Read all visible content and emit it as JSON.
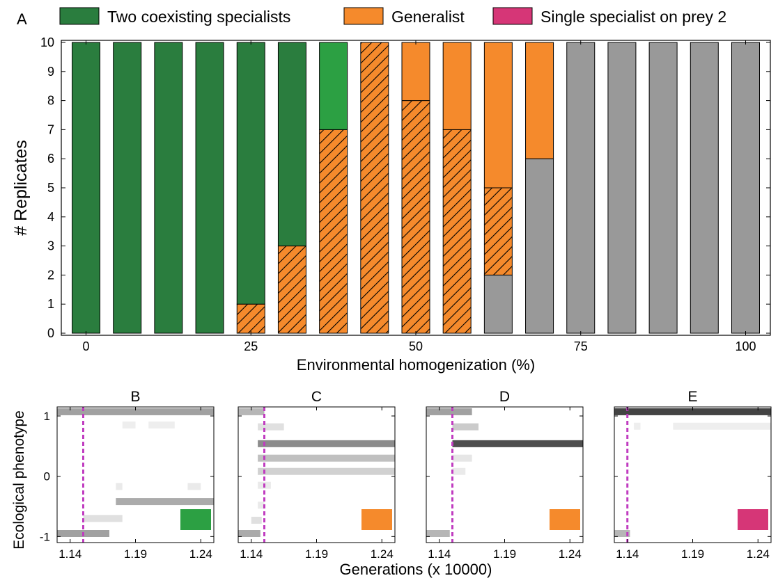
{
  "colors": {
    "specialists_dark": "#2a7d3e",
    "specialists_light": "#2ca043",
    "generalist": "#f58a2c",
    "single_specialist": "#d63677",
    "marker_line": "#c03cc0",
    "trace": "#555555"
  },
  "chart_data": [
    {
      "panel": "A",
      "type": "bar",
      "stacked": true,
      "legend": [
        "Two coexisting specialists",
        "Generalist",
        "Single specialist on prey 2"
      ],
      "legend_position": "top",
      "xlabel": "Environmental homogenization (%)",
      "ylabel": "# Replicates",
      "ylim": [
        0,
        10
      ],
      "yticks": [
        "0",
        "1",
        "2",
        "3",
        "4",
        "5",
        "6",
        "7",
        "8",
        "9",
        "10"
      ],
      "xlim": [
        -3.75,
        103.75
      ],
      "xticks": [
        "0",
        "25",
        "50",
        "75",
        "100"
      ],
      "x": [
        0,
        6.25,
        12.5,
        18.75,
        25,
        31.25,
        37.5,
        43.75,
        50,
        56.25,
        62.5,
        68.75,
        75,
        81.25,
        87.5,
        93.75,
        100
      ],
      "series": [
        {
          "name": "Single specialist on prey 2",
          "style": "single",
          "values": [
            0,
            0,
            0,
            0,
            0,
            0,
            0,
            0,
            0,
            0,
            2,
            6,
            10,
            10,
            10,
            10,
            10
          ]
        },
        {
          "name": "Generalist",
          "style": "hatched",
          "values": [
            0,
            0,
            0,
            0,
            1,
            3,
            7,
            10,
            8,
            7,
            3,
            0,
            0,
            0,
            0,
            0,
            0
          ]
        },
        {
          "name": "Generalist",
          "style": "generalist",
          "values": [
            0,
            0,
            0,
            0,
            0,
            0,
            0,
            0,
            2,
            3,
            5,
            4,
            0,
            0,
            0,
            0,
            0
          ]
        },
        {
          "name": "Two coexisting specialists",
          "style": "specialists_light",
          "values": [
            0,
            0,
            0,
            0,
            0,
            0,
            3,
            0,
            0,
            0,
            0,
            0,
            0,
            0,
            0,
            0,
            0
          ]
        },
        {
          "name": "Two coexisting specialists",
          "style": "specialists_dark",
          "values": [
            10,
            10,
            10,
            10,
            9,
            7,
            0,
            0,
            0,
            0,
            0,
            0,
            0,
            0,
            0,
            0,
            0
          ]
        }
      ],
      "grid": false
    },
    {
      "panel": "B",
      "type": "heatmap",
      "xlabel": "Generations (x 10000)",
      "ylabel": "Ecological phenotype",
      "xlim": [
        1.13,
        1.25
      ],
      "ylim": [
        -1.1,
        1.15
      ],
      "xticks": [
        "1.14",
        "1.19",
        "1.24"
      ],
      "yticks": [
        "-1",
        "0",
        "1"
      ],
      "marker_x": 1.15,
      "swatch": "specialists_light",
      "traces": [
        {
          "y": 1.07,
          "start": 1.13,
          "end": 1.25,
          "intensity": 0.45
        },
        {
          "y": -0.95,
          "start": 1.13,
          "end": 1.17,
          "intensity": 0.45
        },
        {
          "y": -0.7,
          "start": 1.15,
          "end": 1.18,
          "intensity": 0.15
        },
        {
          "y": -0.42,
          "start": 1.175,
          "end": 1.25,
          "intensity": 0.4
        },
        {
          "y": -0.17,
          "start": 1.175,
          "end": 1.18,
          "intensity": 0.1
        },
        {
          "y": -0.17,
          "start": 1.23,
          "end": 1.24,
          "intensity": 0.1
        },
        {
          "y": 0.85,
          "start": 1.18,
          "end": 1.19,
          "intensity": 0.08
        },
        {
          "y": 0.85,
          "start": 1.2,
          "end": 1.22,
          "intensity": 0.08
        }
      ]
    },
    {
      "panel": "C",
      "type": "heatmap",
      "xlabel": "Generations (x 10000)",
      "ylabel": "Ecological phenotype",
      "xlim": [
        1.13,
        1.25
      ],
      "ylim": [
        -1.1,
        1.15
      ],
      "xticks": [
        "1.14",
        "1.19",
        "1.24"
      ],
      "yticks": [
        "-1",
        "0",
        "1"
      ],
      "marker_x": 1.15,
      "swatch": "generalist",
      "traces": [
        {
          "y": 1.07,
          "start": 1.13,
          "end": 1.15,
          "intensity": 0.35
        },
        {
          "y": 0.82,
          "start": 1.145,
          "end": 1.165,
          "intensity": 0.15
        },
        {
          "y": 0.54,
          "start": 1.145,
          "end": 1.25,
          "intensity": 0.55
        },
        {
          "y": 0.3,
          "start": 1.145,
          "end": 1.25,
          "intensity": 0.3
        },
        {
          "y": 0.08,
          "start": 1.145,
          "end": 1.25,
          "intensity": 0.22
        },
        {
          "y": -0.15,
          "start": 1.145,
          "end": 1.155,
          "intensity": 0.1
        },
        {
          "y": -0.48,
          "start": 1.145,
          "end": 1.15,
          "intensity": 0.1
        },
        {
          "y": -0.73,
          "start": 1.14,
          "end": 1.148,
          "intensity": 0.15
        },
        {
          "y": -0.95,
          "start": 1.13,
          "end": 1.147,
          "intensity": 0.4
        }
      ]
    },
    {
      "panel": "D",
      "type": "heatmap",
      "xlabel": "Generations (x 10000)",
      "ylabel": "Ecological phenotype",
      "xlim": [
        1.13,
        1.25
      ],
      "ylim": [
        -1.1,
        1.15
      ],
      "xticks": [
        "1.14",
        "1.19",
        "1.24"
      ],
      "yticks": [
        "-1",
        "0",
        "1"
      ],
      "marker_x": 1.15,
      "swatch": "generalist",
      "traces": [
        {
          "y": 1.07,
          "start": 1.13,
          "end": 1.165,
          "intensity": 0.45
        },
        {
          "y": 0.82,
          "start": 1.15,
          "end": 1.17,
          "intensity": 0.25
        },
        {
          "y": 0.54,
          "start": 1.15,
          "end": 1.25,
          "intensity": 0.85
        },
        {
          "y": 0.3,
          "start": 1.15,
          "end": 1.165,
          "intensity": 0.12
        },
        {
          "y": 0.08,
          "start": 1.15,
          "end": 1.16,
          "intensity": 0.1
        },
        {
          "y": -0.95,
          "start": 1.13,
          "end": 1.148,
          "intensity": 0.35
        }
      ]
    },
    {
      "panel": "E",
      "type": "heatmap",
      "xlabel": "Generations (x 10000)",
      "ylabel": "Ecological phenotype",
      "xlim": [
        1.13,
        1.25
      ],
      "ylim": [
        -1.1,
        1.15
      ],
      "xticks": [
        "1.14",
        "1.19",
        "1.24"
      ],
      "yticks": [
        "-1",
        "0",
        "1"
      ],
      "marker_x": 1.14,
      "swatch": "single_specialist",
      "traces": [
        {
          "y": 1.07,
          "start": 1.13,
          "end": 1.25,
          "intensity": 0.9
        },
        {
          "y": 0.83,
          "start": 1.145,
          "end": 1.15,
          "intensity": 0.08
        },
        {
          "y": 0.83,
          "start": 1.175,
          "end": 1.25,
          "intensity": 0.08
        },
        {
          "y": -0.95,
          "start": 1.13,
          "end": 1.142,
          "intensity": 0.35
        }
      ]
    }
  ],
  "labels": {
    "panel_a": "A",
    "panel_b": "B",
    "panel_c": "C",
    "panel_d": "D",
    "panel_e": "E",
    "bottom_ylabel": "Ecological phenotype",
    "bottom_xlabel": "Generations (x 10000)"
  }
}
